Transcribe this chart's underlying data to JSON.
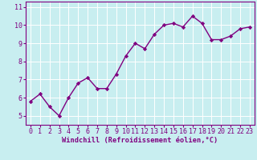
{
  "x": [
    0,
    1,
    2,
    3,
    4,
    5,
    6,
    7,
    8,
    9,
    10,
    11,
    12,
    13,
    14,
    15,
    16,
    17,
    18,
    19,
    20,
    21,
    22,
    23
  ],
  "y": [
    5.8,
    6.2,
    5.5,
    5.0,
    6.0,
    6.8,
    7.1,
    6.5,
    6.5,
    7.3,
    8.3,
    9.0,
    8.7,
    9.5,
    10.0,
    10.1,
    9.9,
    10.5,
    10.1,
    9.2,
    9.2,
    9.4,
    9.8,
    9.9
  ],
  "line_color": "#800080",
  "marker": "D",
  "marker_size": 2.2,
  "line_width": 1.0,
  "bg_color": "#c8eef0",
  "grid_color": "#ffffff",
  "xlabel": "Windchill (Refroidissement éolien,°C)",
  "xlabel_color": "#800080",
  "tick_color": "#800080",
  "ylabel_ticks": [
    5,
    6,
    7,
    8,
    9,
    10,
    11
  ],
  "xlim": [
    -0.5,
    23.5
  ],
  "ylim": [
    4.5,
    11.3
  ],
  "tick_fontsize": 6.0,
  "xlabel_fontsize": 6.2
}
